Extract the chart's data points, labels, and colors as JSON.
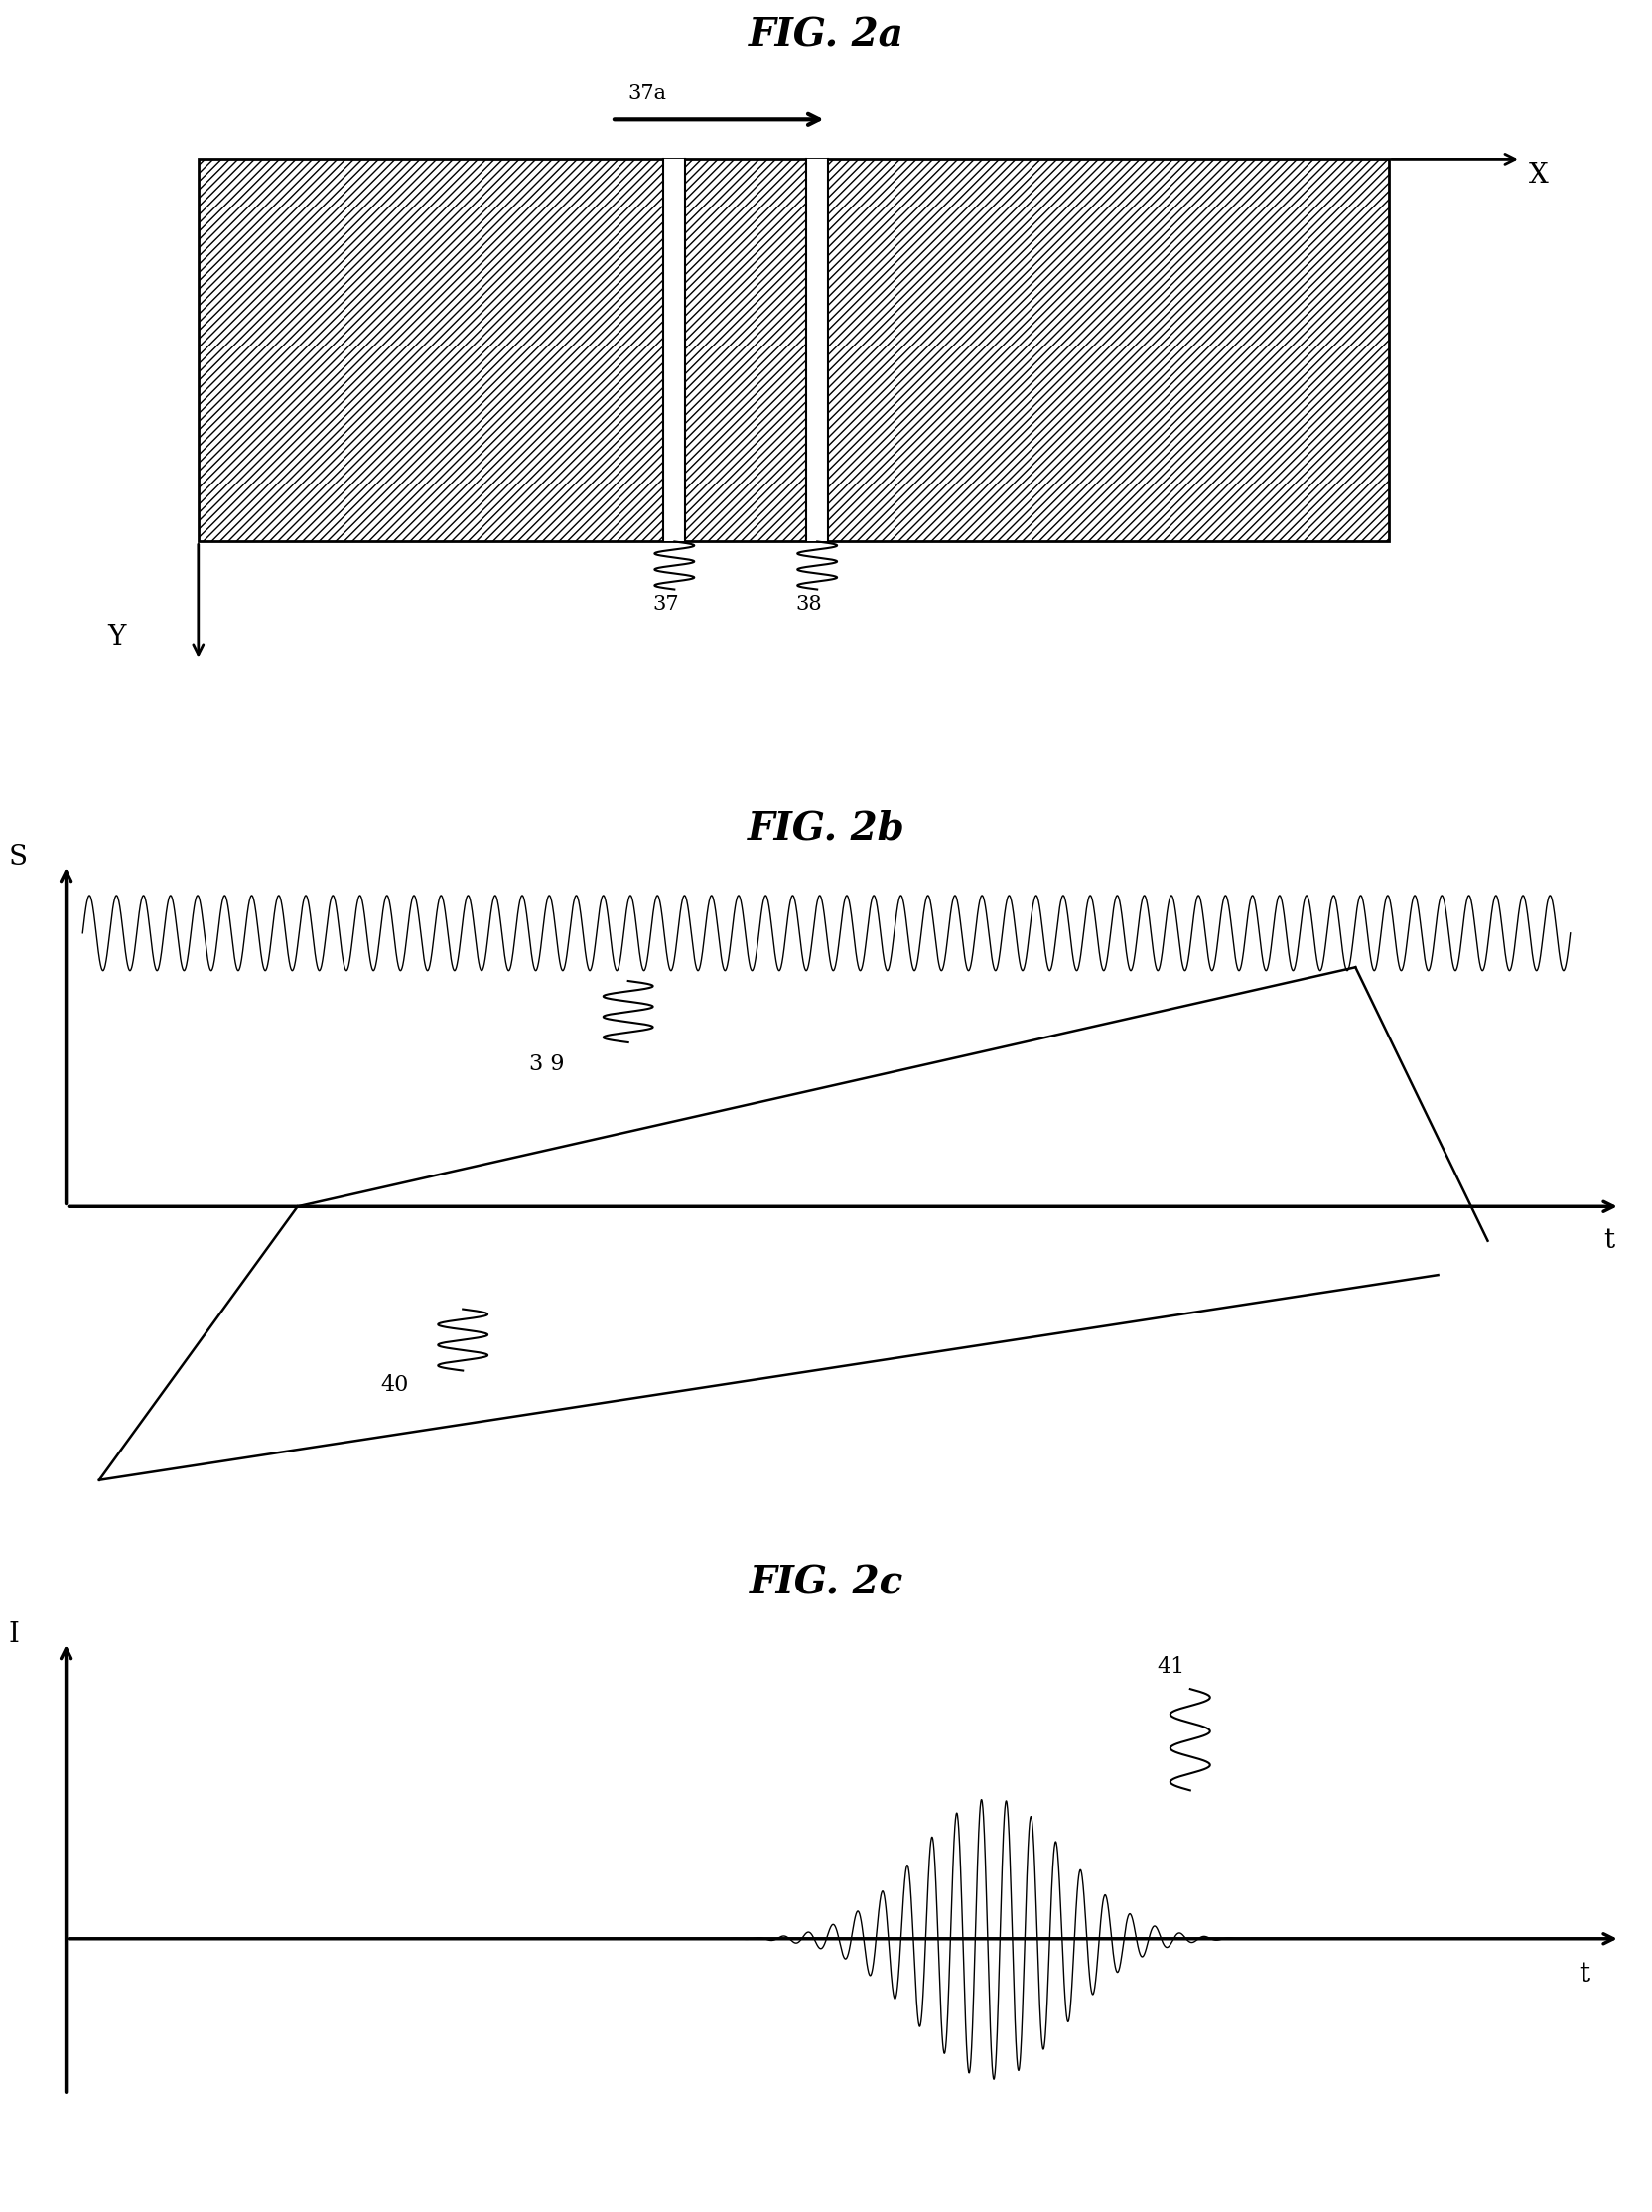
{
  "fig_title_a": "FIG. 2a",
  "fig_title_b": "FIG. 2b",
  "fig_title_c": "FIG. 2c",
  "label_37a": "37a",
  "label_37": "37",
  "label_38": "38",
  "label_39": "3 9",
  "label_40": "40",
  "label_41": "41",
  "label_X": "X",
  "label_Y": "Y",
  "label_S": "S",
  "label_t_b": "t",
  "label_I": "I",
  "label_t_c": "t",
  "bg_color": "#ffffff",
  "line_color": "#000000"
}
